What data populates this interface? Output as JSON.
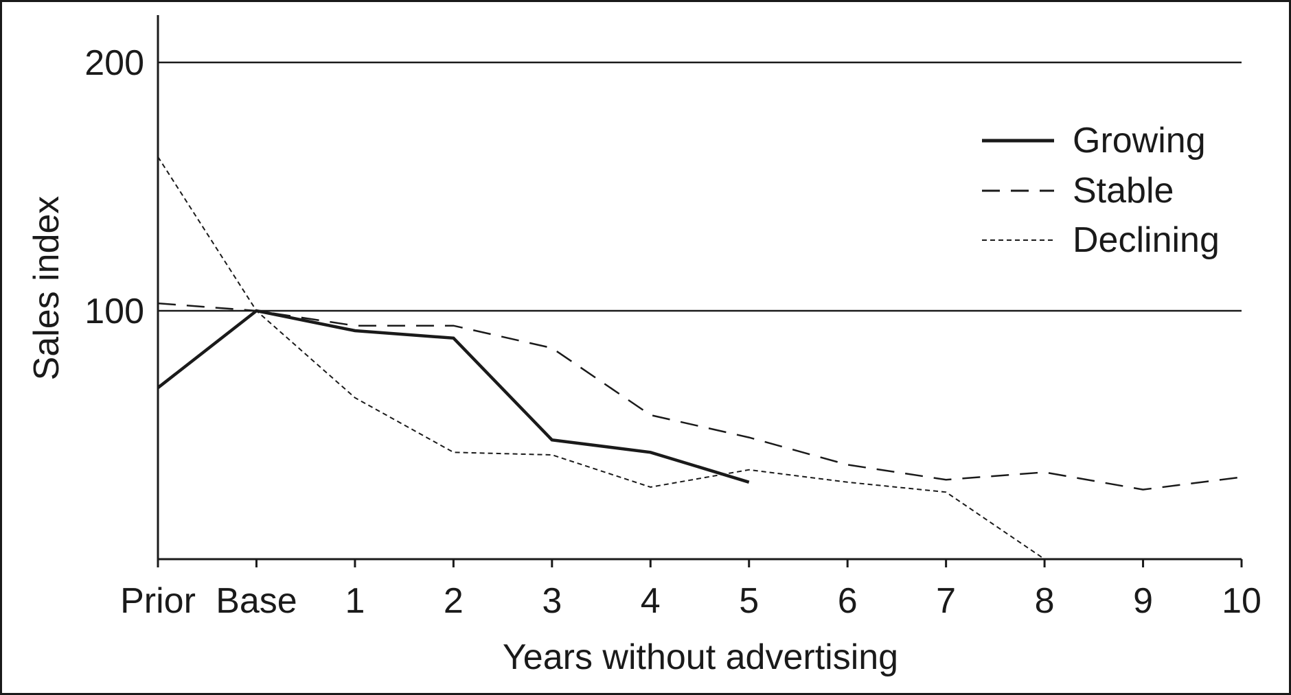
{
  "chart_data": {
    "type": "line",
    "title": "",
    "xlabel": "Years without advertising",
    "ylabel": "Sales index",
    "categories": [
      "Prior",
      "Base",
      "1",
      "2",
      "3",
      "4",
      "5",
      "6",
      "7",
      "8",
      "9",
      "10"
    ],
    "yticks": [
      "100",
      "200"
    ],
    "ytick_values": [
      100,
      200
    ],
    "ylim": [
      0,
      220
    ],
    "grid": "horizontal lines at 100 and 200",
    "legend_position": "top-right",
    "series": [
      {
        "name": "Growing",
        "style": "solid",
        "color": "#1a1a1a",
        "values": [
          69,
          100,
          92,
          89,
          48,
          43,
          31,
          null,
          null,
          null,
          null,
          null
        ]
      },
      {
        "name": "Stable",
        "style": "dashed",
        "color": "#1a1a1a",
        "values": [
          103,
          100,
          94,
          94,
          85,
          58,
          49,
          38,
          32,
          35,
          28,
          33
        ]
      },
      {
        "name": "Declining",
        "style": "dotted",
        "color": "#1a1a1a",
        "values": [
          162,
          100,
          65,
          43,
          42,
          29,
          36,
          31,
          27,
          0,
          null,
          null
        ]
      }
    ]
  }
}
